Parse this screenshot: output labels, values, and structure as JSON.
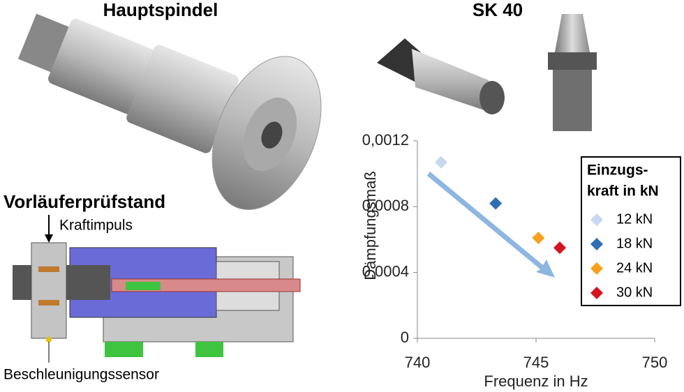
{
  "titles": {
    "main_spindle": "Hauptspindel",
    "tool": "SK 40",
    "test_rig": "Vorläuferprüfstand"
  },
  "labels": {
    "force": "Kraftimpuls",
    "sensor": "Beschleunigungssensor"
  },
  "chart_data": {
    "type": "scatter",
    "x_label": "Frequenz in Hz",
    "y_label": "Dämpfungsmaß",
    "legend_title": [
      "Einzugs-",
      "kraft in kN"
    ],
    "xlim": [
      740,
      750
    ],
    "xticks": [
      740,
      745,
      750
    ],
    "ylim": [
      0,
      0.0012
    ],
    "yticks": [
      0,
      {
        "value": 0.0004,
        "label": "0,0004"
      },
      {
        "value": 0.0008,
        "label": "0,0008"
      },
      {
        "value": 0.0012,
        "label": "0,0012"
      }
    ],
    "legend": "right",
    "series": [
      {
        "name": "12 kN",
        "color": "#c6d9f0",
        "x": [
          741
        ],
        "values": [
          0.00107
        ]
      },
      {
        "name": "18 kN",
        "color": "#2e6eb5",
        "x": [
          743.3
        ],
        "values": [
          0.00082
        ]
      },
      {
        "name": "24 kN",
        "color": "#f7a11e",
        "x": [
          745.1
        ],
        "values": [
          0.00061
        ]
      },
      {
        "name": "30 kN",
        "color": "#d6141e",
        "x": [
          746
        ],
        "values": [
          0.00055
        ]
      }
    ]
  }
}
